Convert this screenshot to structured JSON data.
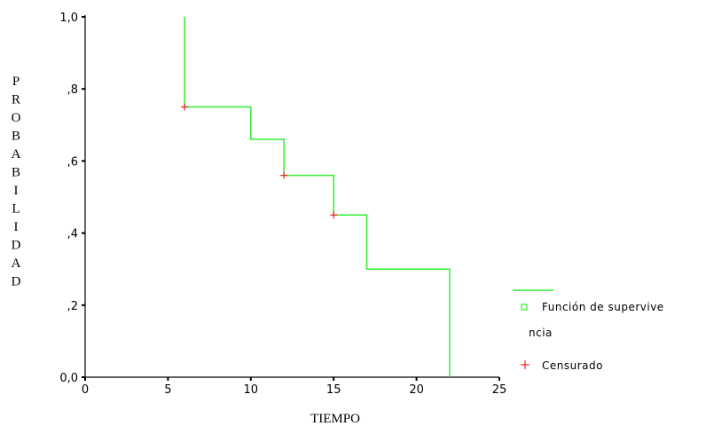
{
  "chart_data": {
    "type": "line",
    "step": true,
    "xlabel": "TIEMPO",
    "ylabel": "PROBABILIDAD",
    "xlim": [
      0,
      25
    ],
    "ylim": [
      0,
      1
    ],
    "x_ticks": [
      0,
      5,
      10,
      15,
      20,
      25
    ],
    "y_ticks": [
      0,
      0.2,
      0.4,
      0.6,
      0.8,
      1.0
    ],
    "x_tick_labels": [
      "0",
      "5",
      "10",
      "15",
      "20",
      "25"
    ],
    "y_tick_labels": [
      "0,0",
      ",2",
      ",4",
      ",6",
      ",8",
      "1,0"
    ],
    "grid": false,
    "legend_position": "right",
    "series": [
      {
        "name": "Función de supervivencia",
        "color": "#33ee33",
        "points": [
          {
            "x": 6,
            "y": 1.0
          },
          {
            "x": 6,
            "y": 0.75
          },
          {
            "x": 10,
            "y": 0.75
          },
          {
            "x": 10,
            "y": 0.66
          },
          {
            "x": 12,
            "y": 0.66
          },
          {
            "x": 12,
            "y": 0.56
          },
          {
            "x": 15,
            "y": 0.56
          },
          {
            "x": 15,
            "y": 0.45
          },
          {
            "x": 17,
            "y": 0.45
          },
          {
            "x": 17,
            "y": 0.3
          },
          {
            "x": 22,
            "y": 0.3
          },
          {
            "x": 22,
            "y": 0.0
          }
        ]
      },
      {
        "name": "Censurado",
        "color": "#ee2222",
        "marker": "plus",
        "censored": [
          {
            "x": 6,
            "y": 0.75
          },
          {
            "x": 12,
            "y": 0.56
          },
          {
            "x": 15,
            "y": 0.45
          }
        ]
      }
    ],
    "legend": {
      "survival_line1": "Función de supervive",
      "survival_line2": "ncia",
      "censored": "Censurado"
    }
  }
}
